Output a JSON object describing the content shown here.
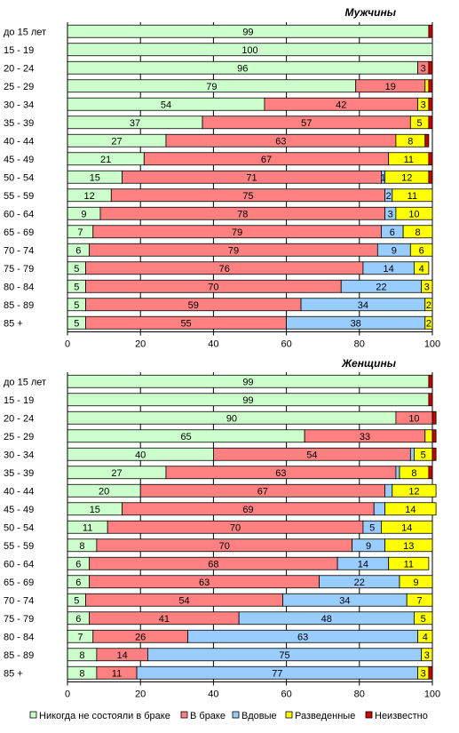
{
  "chart_data": [
    {
      "type": "bar",
      "orientation": "horizontal",
      "stacked": true,
      "title": "Мужчины",
      "categories": [
        "до 15 лет",
        "15 - 19",
        "20 - 24",
        "25 - 29",
        "30 - 34",
        "35 - 39",
        "40 - 44",
        "45 - 49",
        "50 - 54",
        "55 - 59",
        "60 - 64",
        "65 - 69",
        "70 - 74",
        "75 - 79",
        "80 - 84",
        "85 - 89",
        "85 +"
      ],
      "xlim": [
        0,
        100
      ],
      "xticks": [
        "0",
        "20",
        "40",
        "60",
        "80",
        "100"
      ],
      "series": [
        {
          "name": "Никогда  не состояли в браке",
          "color": "#ccffcc",
          "values": [
            99,
            100,
            96,
            79,
            54,
            37,
            27,
            21,
            15,
            12,
            9,
            7,
            6,
            5,
            5,
            5,
            5
          ]
        },
        {
          "name": "В браке",
          "color": "#ff8080",
          "values": [
            0,
            0,
            3,
            19,
            42,
            57,
            63,
            67,
            71,
            75,
            78,
            79,
            79,
            76,
            70,
            59,
            55
          ]
        },
        {
          "name": "Вдовые",
          "color": "#99ccff",
          "values": [
            0,
            0,
            0,
            0,
            0,
            0,
            0,
            0,
            1,
            2,
            3,
            6,
            9,
            14,
            22,
            34,
            38
          ]
        },
        {
          "name": "Разведенные",
          "color": "#ffff00",
          "values": [
            0,
            0,
            0,
            1,
            3,
            5,
            8,
            11,
            12,
            11,
            10,
            8,
            6,
            4,
            3,
            2,
            2
          ]
        },
        {
          "name": "Неизвестно",
          "color": "#cc0000",
          "values": [
            1,
            0,
            1,
            1,
            1,
            1,
            1,
            1,
            1,
            0,
            0,
            0,
            0,
            0,
            0,
            0,
            0
          ]
        }
      ],
      "value_labels": [
        [
          "99",
          "",
          "",
          "",
          ""
        ],
        [
          "100",
          "",
          "",
          "",
          ""
        ],
        [
          "96",
          "3",
          "",
          "",
          ""
        ],
        [
          "79",
          "19",
          "",
          "",
          ""
        ],
        [
          "54",
          "42",
          "",
          "3",
          ""
        ],
        [
          "37",
          "57",
          "",
          "5",
          ""
        ],
        [
          "27",
          "63",
          "",
          "8",
          ""
        ],
        [
          "21",
          "67",
          "",
          "11",
          ""
        ],
        [
          "15",
          "71",
          "1",
          "12",
          ""
        ],
        [
          "12",
          "75",
          "2",
          "11",
          ""
        ],
        [
          "9",
          "78",
          "3",
          "10",
          ""
        ],
        [
          "7",
          "79",
          "6",
          "8",
          ""
        ],
        [
          "6",
          "79",
          "9",
          "6",
          ""
        ],
        [
          "5",
          "76",
          "14",
          "4",
          ""
        ],
        [
          "5",
          "70",
          "22",
          "3",
          ""
        ],
        [
          "5",
          "59",
          "34",
          "2",
          ""
        ],
        [
          "5",
          "55",
          "38",
          "2",
          ""
        ]
      ]
    },
    {
      "type": "bar",
      "orientation": "horizontal",
      "stacked": true,
      "title": "Женщины",
      "categories": [
        "до 15 лет",
        "15 - 19",
        "20 - 24",
        "25 - 29",
        "30 - 34",
        "35 - 39",
        "40 - 44",
        "45 - 49",
        "50 - 54",
        "55 - 59",
        "60 - 64",
        "65 - 69",
        "70 - 74",
        "75 - 79",
        "80 - 84",
        "85 - 89",
        "85 +"
      ],
      "xlim": [
        0,
        100
      ],
      "xticks": [
        "0",
        "20",
        "40",
        "60",
        "80",
        "100"
      ],
      "series": [
        {
          "name": "Никогда  не состояли в браке",
          "color": "#ccffcc",
          "values": [
            99,
            99,
            90,
            65,
            40,
            27,
            20,
            15,
            11,
            8,
            6,
            6,
            5,
            6,
            7,
            8,
            8
          ]
        },
        {
          "name": "В браке",
          "color": "#ff8080",
          "values": [
            0,
            0,
            10,
            33,
            54,
            63,
            67,
            69,
            70,
            70,
            68,
            63,
            54,
            41,
            26,
            14,
            11
          ]
        },
        {
          "name": "Вдовые",
          "color": "#99ccff",
          "values": [
            0,
            0,
            0,
            0,
            1,
            1,
            2,
            3,
            5,
            9,
            14,
            22,
            34,
            48,
            63,
            75,
            77
          ]
        },
        {
          "name": "Разведенные",
          "color": "#ffff00",
          "values": [
            0,
            0,
            0,
            2,
            5,
            8,
            12,
            14,
            14,
            13,
            11,
            9,
            7,
            5,
            4,
            3,
            3
          ]
        },
        {
          "name": "Неизвестно",
          "color": "#cc0000",
          "values": [
            1,
            1,
            1,
            1,
            1,
            1,
            0,
            0,
            0,
            0,
            0,
            0,
            0,
            0,
            0,
            0,
            1
          ]
        }
      ],
      "value_labels": [
        [
          "99",
          "",
          "",
          "",
          ""
        ],
        [
          "99",
          "",
          "",
          "",
          ""
        ],
        [
          "90",
          "10",
          "",
          "",
          ""
        ],
        [
          "65",
          "33",
          "",
          "",
          ""
        ],
        [
          "40",
          "54",
          "",
          "5",
          ""
        ],
        [
          "27",
          "63",
          "",
          "8",
          ""
        ],
        [
          "20",
          "67",
          "",
          "12",
          ""
        ],
        [
          "15",
          "69",
          "",
          "14",
          ""
        ],
        [
          "11",
          "70",
          "5",
          "14",
          ""
        ],
        [
          "8",
          "70",
          "9",
          "13",
          ""
        ],
        [
          "6",
          "68",
          "14",
          "11",
          ""
        ],
        [
          "6",
          "63",
          "22",
          "9",
          ""
        ],
        [
          "5",
          "54",
          "34",
          "7",
          ""
        ],
        [
          "6",
          "41",
          "48",
          "5",
          ""
        ],
        [
          "7",
          "26",
          "63",
          "4",
          ""
        ],
        [
          "8",
          "14",
          "75",
          "3",
          ""
        ],
        [
          "8",
          "11",
          "77",
          "3",
          ""
        ]
      ]
    }
  ],
  "legend": {
    "placement": "bottom",
    "items": [
      {
        "label": "Никогда  не состояли в браке",
        "color": "#ccffcc"
      },
      {
        "label": "В браке",
        "color": "#ff8080"
      },
      {
        "label": "Вдовые",
        "color": "#99ccff"
      },
      {
        "label": "Разведенные",
        "color": "#ffff00"
      },
      {
        "label": "Неизвестно",
        "color": "#cc0000"
      }
    ]
  }
}
